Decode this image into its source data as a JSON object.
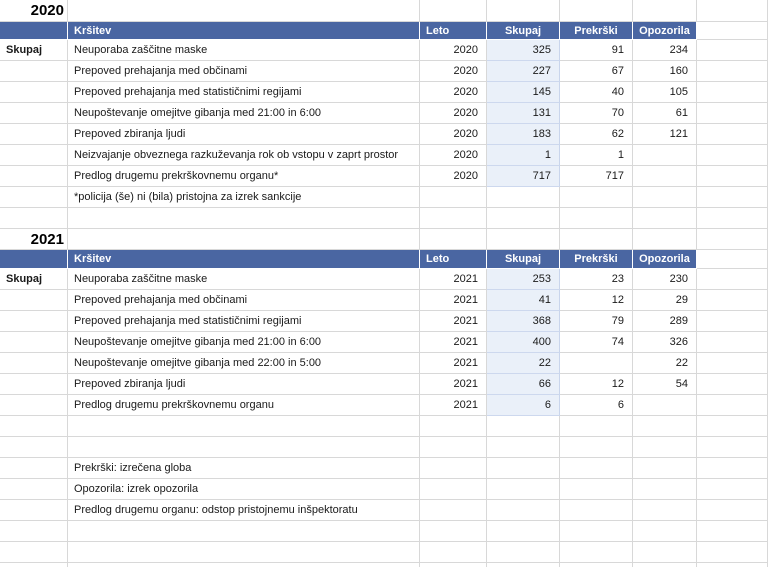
{
  "colors": {
    "header_bg": "#4A66A2",
    "header_text": "#FFFFFF",
    "skupaj_column_fill": "#EAF0F9",
    "gridline": "#D8D8D8"
  },
  "legend": [
    "Prekrški: izrečena globa",
    "Opozorila: izrek opozorila",
    "Predlog drugemu organu: odstop pristojnemu inšpektoratu"
  ],
  "sections": [
    {
      "year": "2020",
      "side_label": "Skupaj",
      "columns": [
        "Kršitev",
        "Leto",
        "Skupaj",
        "Prekrški",
        "Opozorila"
      ],
      "rows": [
        {
          "krsitev": "Neuporaba zaščitne maske",
          "leto": "2020",
          "skupaj": "325",
          "prekrski": "91",
          "opozorila": "234"
        },
        {
          "krsitev": "Prepoved prehajanja med občinami",
          "leto": "2020",
          "skupaj": "227",
          "prekrski": "67",
          "opozorila": "160"
        },
        {
          "krsitev": "Prepoved prehajanja med statističnimi regijami",
          "leto": "2020",
          "skupaj": "145",
          "prekrski": "40",
          "opozorila": "105"
        },
        {
          "krsitev": "Neupoštevanje omejitve gibanja med 21:00 in 6:00",
          "leto": "2020",
          "skupaj": "131",
          "prekrski": "70",
          "opozorila": "61"
        },
        {
          "krsitev": "Prepoved zbiranja ljudi",
          "leto": "2020",
          "skupaj": "183",
          "prekrski": "62",
          "opozorila": "121"
        },
        {
          "krsitev": "Neizvajanje obveznega razkuževanja rok ob vstopu v zaprt prostor",
          "leto": "2020",
          "skupaj": "1",
          "prekrski": "1",
          "opozorila": ""
        },
        {
          "krsitev": "Predlog drugemu prekrškovnemu organu*",
          "leto": "2020",
          "skupaj": "717",
          "prekrski": "717",
          "opozorila": ""
        }
      ],
      "footnote": "*policija (še) ni (bila) pristojna za izrek sankcije"
    },
    {
      "year": "2021",
      "side_label": "Skupaj",
      "columns": [
        "Kršitev",
        "Leto",
        "Skupaj",
        "Prekrški",
        "Opozorila"
      ],
      "rows": [
        {
          "krsitev": "Neuporaba zaščitne maske",
          "leto": "2021",
          "skupaj": "253",
          "prekrski": "23",
          "opozorila": "230"
        },
        {
          "krsitev": "Prepoved prehajanja med občinami",
          "leto": "2021",
          "skupaj": "41",
          "prekrski": "12",
          "opozorila": "29"
        },
        {
          "krsitev": "Prepoved prehajanja med statističnimi regijami",
          "leto": "2021",
          "skupaj": "368",
          "prekrski": "79",
          "opozorila": "289"
        },
        {
          "krsitev": "Neupoštevanje omejitve gibanja med 21:00 in 6:00",
          "leto": "2021",
          "skupaj": "400",
          "prekrski": "74",
          "opozorila": "326"
        },
        {
          "krsitev": "Neupoštevanje omejitve gibanja med 22:00 in 5:00",
          "leto": "2021",
          "skupaj": "22",
          "prekrski": "",
          "opozorila": "22"
        },
        {
          "krsitev": "Prepoved zbiranja ljudi",
          "leto": "2021",
          "skupaj": "66",
          "prekrski": "12",
          "opozorila": "54"
        },
        {
          "krsitev": "Predlog drugemu prekrškovnemu organu",
          "leto": "2021",
          "skupaj": "6",
          "prekrski": "6",
          "opozorila": ""
        }
      ],
      "footnote": ""
    }
  ]
}
